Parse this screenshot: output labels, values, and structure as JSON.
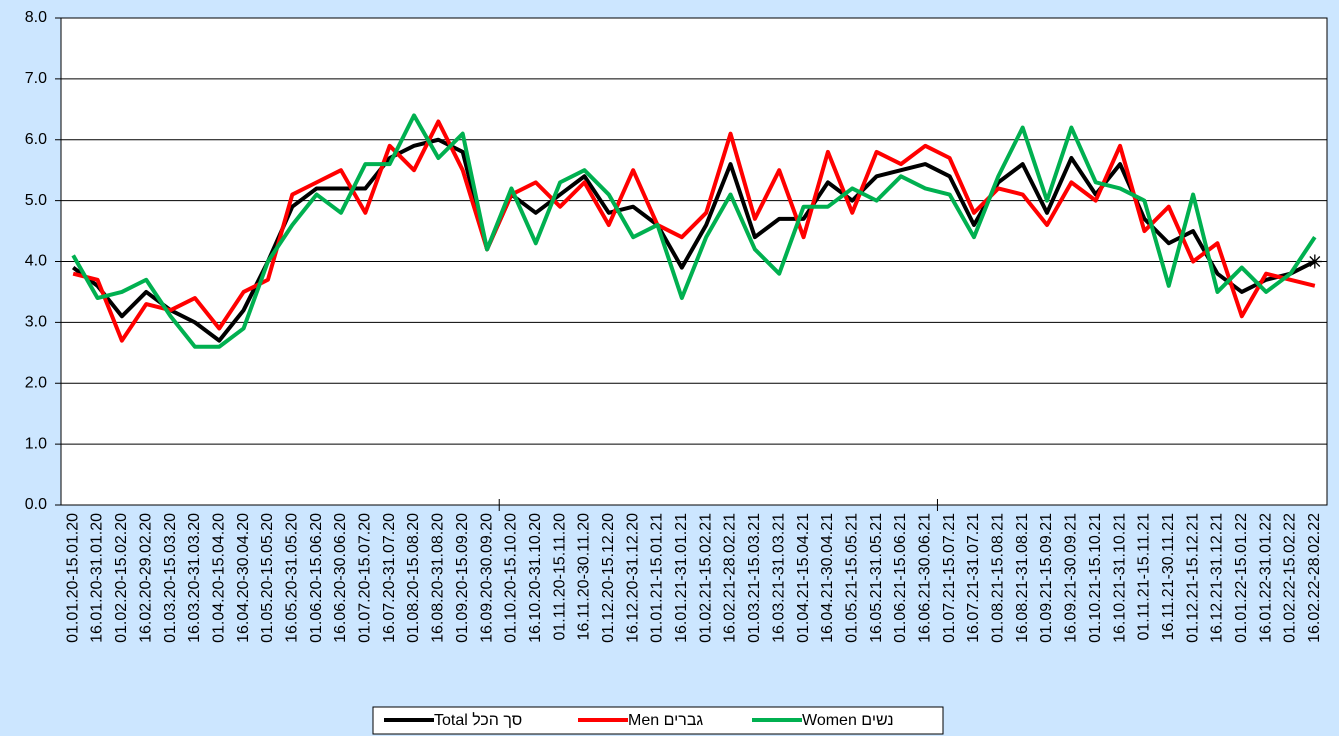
{
  "chart_data": {
    "type": "line",
    "categories": [
      "01.01.20-15.01.20",
      "16.01.20-31.01.20",
      "01.02.20-15.02.20",
      "16.02.20-29.02.20",
      "01.03.20-15.03.20",
      "16.03.20-31.03.20",
      "01.04.20-15.04.20",
      "16.04.20-30.04.20",
      "01.05.20-15.05.20",
      "16.05.20-31.05.20",
      "01.06.20-15.06.20",
      "16.06.20-30.06.20",
      "01.07.20-15.07.20",
      "16.07.20-31.07.20",
      "01.08.20-15.08.20",
      "16.08.20-31.08.20",
      "01.09.20-15.09.20",
      "16.09.20-30.09.20",
      "01.10.20-15.10.20",
      "16.10.20-31.10.20",
      "01.11.20-15.11.20",
      "16.11.20-30.11.20",
      "01.12.20-15.12.20",
      "16.12.20-31.12.20",
      "01.01.21-15.01.21",
      "16.01.21-31.01.21",
      "01.02.21-15.02.21",
      "16.02.21-28.02.21",
      "01.03.21-15.03.21",
      "16.03.21-31.03.21",
      "01.04.21-15.04.21",
      "16.04.21-30.04.21",
      "01.05.21-15.05.21",
      "16.05.21-31.05.21",
      "01.06.21-15.06.21",
      "16.06.21-30.06.21",
      "01.07.21-15.07.21",
      "16.07.21-31.07.21",
      "01.08.21-15.08.21",
      "16.08.21-31.08.21",
      "01.09.21-15.09.21",
      "16.09.21-30.09.21",
      "01.10.21-15.10.21",
      "16.10.21-31.10.21",
      "01.11.21-15.11.21",
      "16.11.21-30.11.21",
      "01.12.21-15.12.21",
      "16.12.21-31.12.21",
      "01.01.22-15.01.22",
      "16.01.22-31.01.22",
      "01.02.22-15.02.22",
      "16.02.22-28.02.22"
    ],
    "series": [
      {
        "name": "Total סך הכל",
        "color": "#000000",
        "values": [
          3.9,
          3.6,
          3.1,
          3.5,
          3.2,
          3.0,
          2.7,
          3.2,
          4.0,
          4.9,
          5.2,
          5.2,
          5.2,
          5.7,
          5.9,
          6.0,
          5.8,
          4.2,
          5.1,
          4.8,
          5.1,
          5.4,
          4.8,
          4.9,
          4.6,
          3.9,
          4.6,
          5.6,
          4.4,
          4.7,
          4.7,
          5.3,
          5.0,
          5.4,
          5.5,
          5.6,
          5.4,
          4.6,
          5.3,
          5.6,
          4.8,
          5.7,
          5.1,
          5.6,
          4.7,
          4.3,
          4.5,
          3.8,
          3.5,
          3.7,
          3.8,
          4.0
        ]
      },
      {
        "name": "Men גברים",
        "color": "#ff0000",
        "values": [
          3.8,
          3.7,
          2.7,
          3.3,
          3.2,
          3.4,
          2.9,
          3.5,
          3.7,
          5.1,
          5.3,
          5.5,
          4.8,
          5.9,
          5.5,
          6.3,
          5.5,
          4.2,
          5.1,
          5.3,
          4.9,
          5.3,
          4.6,
          5.5,
          4.6,
          4.4,
          4.8,
          6.1,
          4.7,
          5.5,
          4.4,
          5.8,
          4.8,
          5.8,
          5.6,
          5.9,
          5.7,
          4.8,
          5.2,
          5.1,
          4.6,
          5.3,
          5.0,
          5.9,
          4.5,
          4.9,
          4.0,
          4.3,
          3.1,
          3.8,
          3.7,
          3.6
        ]
      },
      {
        "name": "Women נשים",
        "color": "#00b050",
        "values": [
          4.1,
          3.4,
          3.5,
          3.7,
          3.1,
          2.6,
          2.6,
          2.9,
          4.0,
          4.6,
          5.1,
          4.8,
          5.6,
          5.6,
          6.4,
          5.7,
          6.1,
          4.2,
          5.2,
          4.3,
          5.3,
          5.5,
          5.1,
          4.4,
          4.6,
          3.4,
          4.4,
          5.1,
          4.2,
          3.8,
          4.9,
          4.9,
          5.2,
          5.0,
          5.4,
          5.2,
          5.1,
          4.4,
          5.4,
          6.2,
          5.0,
          6.2,
          5.3,
          5.2,
          5.0,
          3.6,
          5.1,
          3.5,
          3.9,
          3.5,
          3.8,
          4.4
        ]
      }
    ],
    "ylim": [
      0,
      8
    ],
    "yticks": [
      {
        "value": 0,
        "label": "0.0"
      },
      {
        "value": 1,
        "label": "1.0"
      },
      {
        "value": 2,
        "label": "2.0"
      },
      {
        "value": 3,
        "label": "3.0"
      },
      {
        "value": 4,
        "label": "4.0"
      },
      {
        "value": 5,
        "label": "5.0"
      },
      {
        "value": 6,
        "label": "6.0"
      },
      {
        "value": 7,
        "label": "7.0"
      },
      {
        "value": 8,
        "label": "8.0"
      }
    ],
    "grid": true,
    "legend": "bottom"
  }
}
